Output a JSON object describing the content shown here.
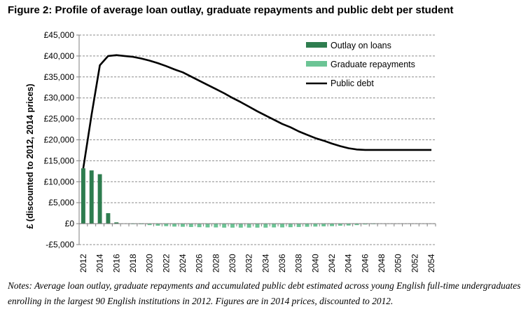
{
  "figure_title": "Figure 2: Profile of average loan outlay, graduate repayments and public debt per student",
  "notes": "Notes: Average loan outlay, graduate repayments and accumulated public debt estimated across young English full-time undergraduates enrolling in the largest 90 English institutions in 2012. Figures are in 2014 prices, discounted to 2012.",
  "chart_data": {
    "type": "bar",
    "title": "",
    "ylabel": "£ (discounted to 2012, 2014 prices)",
    "xlabel": "",
    "ylim": [
      -5000,
      45000
    ],
    "yticks": [
      -5000,
      0,
      5000,
      10000,
      15000,
      20000,
      25000,
      30000,
      35000,
      40000,
      45000
    ],
    "ytick_labels": [
      "-£5,000",
      "£0",
      "£5,000",
      "£10,000",
      "£15,000",
      "£20,000",
      "£25,000",
      "£30,000",
      "£35,000",
      "£40,000",
      "£45,000"
    ],
    "grid": true,
    "legend_position": "top-right",
    "x": [
      2012,
      2013,
      2014,
      2015,
      2016,
      2017,
      2018,
      2019,
      2020,
      2021,
      2022,
      2023,
      2024,
      2025,
      2026,
      2027,
      2028,
      2029,
      2030,
      2031,
      2032,
      2033,
      2034,
      2035,
      2036,
      2037,
      2038,
      2039,
      2040,
      2041,
      2042,
      2043,
      2044,
      2045,
      2046,
      2047,
      2048,
      2049,
      2050,
      2051,
      2052,
      2053,
      2054
    ],
    "x_tick_labels": [
      "2012",
      "2014",
      "2016",
      "2018",
      "2020",
      "2022",
      "2024",
      "2026",
      "2028",
      "2030",
      "2032",
      "2034",
      "2036",
      "2038",
      "2040",
      "2042",
      "2044",
      "2046",
      "2048",
      "2050",
      "2052",
      "2054"
    ],
    "series": [
      {
        "name": "Outlay on loans",
        "type": "bar",
        "color": "#2e7d4f",
        "values": [
          13200,
          12700,
          11800,
          2500,
          300,
          0,
          0,
          0,
          0,
          0,
          0,
          0,
          0,
          0,
          0,
          0,
          0,
          0,
          0,
          0,
          0,
          0,
          0,
          0,
          0,
          0,
          0,
          0,
          0,
          0,
          0,
          0,
          0,
          0,
          0,
          0,
          0,
          0,
          0,
          0,
          0,
          0,
          0
        ]
      },
      {
        "name": "Graduate repayments",
        "type": "bar",
        "color": "#6cc495",
        "values": [
          0,
          0,
          0,
          0,
          0,
          0,
          -50,
          -150,
          -350,
          -500,
          -600,
          -700,
          -750,
          -800,
          -850,
          -900,
          -900,
          -950,
          -950,
          -950,
          -950,
          -950,
          -950,
          -900,
          -900,
          -850,
          -800,
          -750,
          -700,
          -650,
          -600,
          -500,
          -450,
          -350,
          -200,
          -100,
          0,
          0,
          0,
          0,
          0,
          0,
          0
        ]
      },
      {
        "name": "Public debt",
        "type": "line",
        "color": "#000000",
        "values": [
          13200,
          26000,
          37800,
          40000,
          40200,
          40000,
          39800,
          39400,
          38900,
          38300,
          37600,
          36800,
          36100,
          35100,
          34100,
          33100,
          32100,
          31100,
          30000,
          29000,
          27900,
          26800,
          25800,
          24800,
          23800,
          23000,
          22000,
          21200,
          20400,
          19800,
          19100,
          18500,
          18000,
          17700,
          17600,
          17600,
          17600,
          17600,
          17600,
          17600,
          17600,
          17600,
          17600
        ]
      }
    ]
  }
}
